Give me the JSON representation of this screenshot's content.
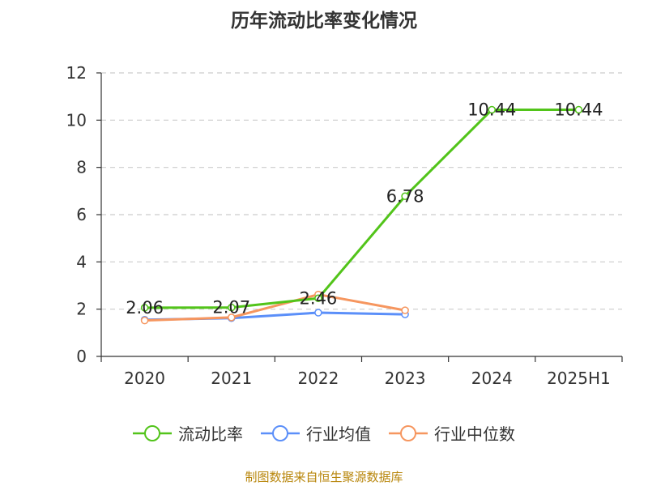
{
  "title": "历年流动比率变化情况",
  "source": "制图数据来自恒生聚源数据库",
  "chart_data": {
    "type": "line",
    "categories": [
      "2020",
      "2021",
      "2022",
      "2023",
      "2024",
      "2025H1"
    ],
    "ylim": [
      0,
      12
    ],
    "yticks": [
      0,
      2,
      4,
      6,
      8,
      10,
      12
    ],
    "grid": true,
    "legend_position": "bottom",
    "series": [
      {
        "name": "流动比率",
        "color": "#52c41a",
        "values": [
          2.06,
          2.07,
          2.46,
          6.78,
          10.44,
          10.44
        ],
        "labels": [
          "2.06",
          "2.07",
          "2.46",
          "6.78",
          "10.44",
          "10.44"
        ]
      },
      {
        "name": "行业均值",
        "color": "#5b8ff9",
        "values": [
          1.55,
          1.62,
          1.85,
          1.78,
          null,
          null
        ]
      },
      {
        "name": "行业中位数",
        "color": "#f6965f",
        "values": [
          1.52,
          1.65,
          2.62,
          1.95,
          null,
          null
        ]
      }
    ]
  }
}
